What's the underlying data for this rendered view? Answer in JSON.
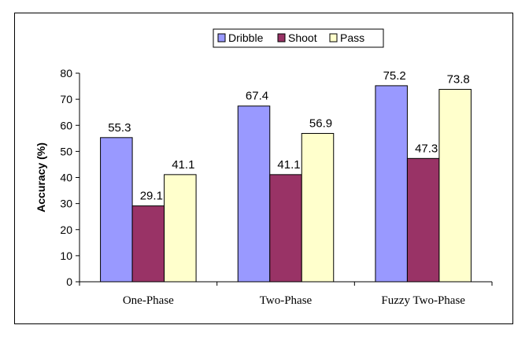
{
  "chart_data": {
    "type": "bar",
    "title": "",
    "xlabel": "",
    "ylabel": "Accuracy (%)",
    "ylim": [
      0,
      80
    ],
    "yticks": [
      0,
      10,
      20,
      30,
      40,
      50,
      60,
      70,
      80
    ],
    "grid": false,
    "legend_position": "top-center",
    "categories": [
      "One-Phase",
      "Two-Phase",
      "Fuzzy Two-Phase"
    ],
    "series": [
      {
        "name": "Dribble",
        "color": "#9999ff",
        "values": [
          55.3,
          67.4,
          75.2
        ],
        "labels": [
          "55.3",
          "67.4",
          "75.2"
        ]
      },
      {
        "name": "Shoot",
        "color": "#993366",
        "values": [
          29.1,
          41.1,
          47.3
        ],
        "labels": [
          "29.1",
          "41.1",
          "47.3"
        ]
      },
      {
        "name": "Pass",
        "color": "#ffffcc",
        "values": [
          41.1,
          56.9,
          73.8
        ],
        "labels": [
          "41.1",
          "56.9",
          "73.8"
        ]
      }
    ]
  }
}
